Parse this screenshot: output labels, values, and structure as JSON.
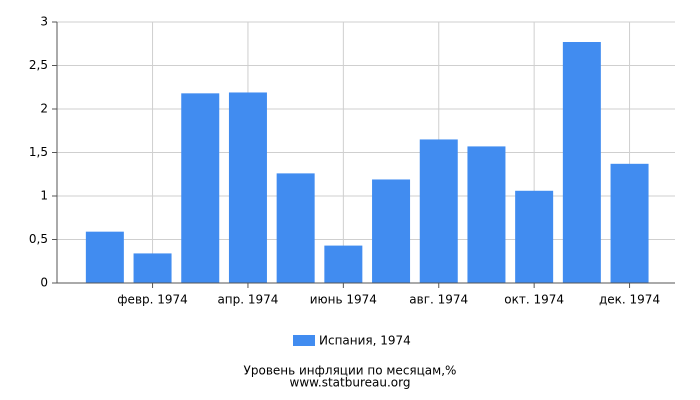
{
  "chart_data": {
    "type": "bar",
    "title": "Уровень инфляции по месяцам,%",
    "source": "www.statbureau.org",
    "categories": [
      null,
      "февр. 1974",
      null,
      "апр. 1974",
      null,
      "июнь 1974",
      null,
      "авг. 1974",
      null,
      "окт. 1974",
      null,
      "дек. 1974"
    ],
    "series": [
      {
        "name": "Испания, 1974",
        "color": "#418cf0",
        "values": [
          0.59,
          0.34,
          2.18,
          2.19,
          1.26,
          0.43,
          1.19,
          1.65,
          1.57,
          1.06,
          2.77,
          1.37
        ]
      }
    ],
    "ylim": [
      0,
      3
    ],
    "yticks": [
      0,
      {
        "value": 0.5,
        "label": "0,5"
      },
      1,
      {
        "value": 1.5,
        "label": "1,5"
      },
      2,
      {
        "value": 2.5,
        "label": "2,5"
      },
      3
    ],
    "grid": true
  }
}
